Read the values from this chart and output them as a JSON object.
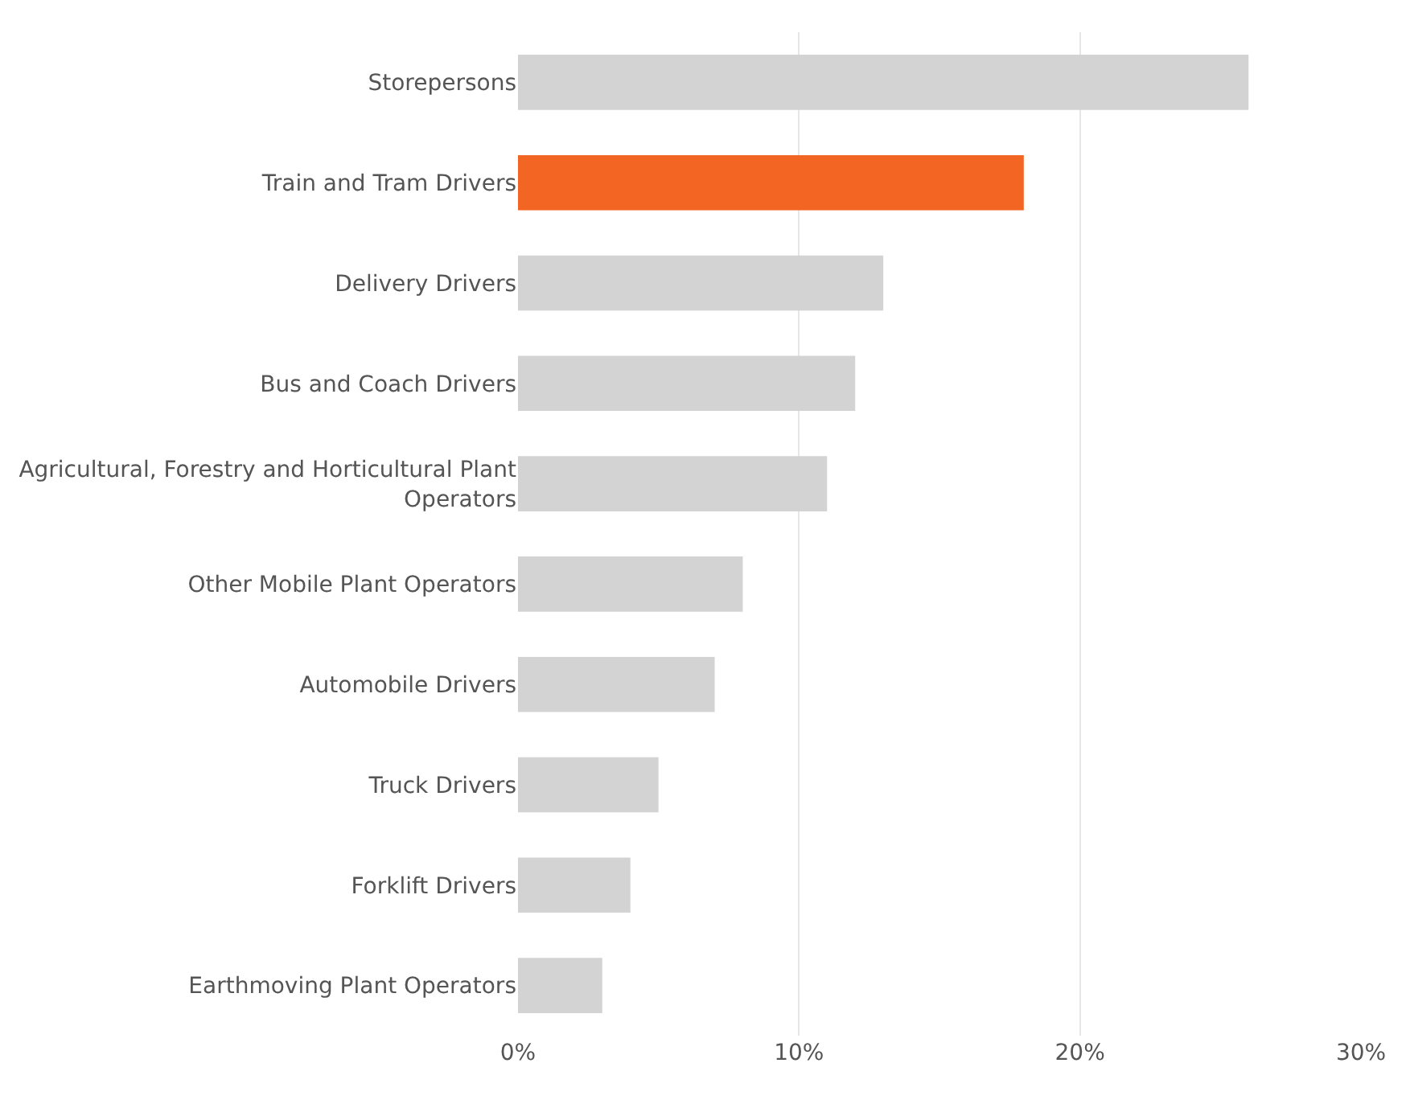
{
  "chart_data": {
    "type": "bar",
    "orientation": "horizontal",
    "categories": [
      "Storepersons",
      "Train and Tram Drivers",
      "Delivery Drivers",
      "Bus and Coach Drivers",
      "Agricultural, Forestry and Horticultural Plant Operators",
      "Other Mobile Plant Operators",
      "Automobile Drivers",
      "Truck Drivers",
      "Forklift Drivers",
      "Earthmoving Plant Operators"
    ],
    "values": [
      26,
      18,
      13,
      12,
      11,
      8,
      7,
      5,
      4,
      3
    ],
    "colors": [
      "#d3d3d3",
      "#f26522",
      "#d3d3d3",
      "#d3d3d3",
      "#d3d3d3",
      "#d3d3d3",
      "#d3d3d3",
      "#d3d3d3",
      "#d3d3d3",
      "#d3d3d3"
    ],
    "xlim": [
      0,
      30
    ],
    "xticks": [
      {
        "value": 0,
        "label": "0%"
      },
      {
        "value": 10,
        "label": "10%"
      },
      {
        "value": 20,
        "label": "20%"
      },
      {
        "value": 30,
        "label": "30%"
      }
    ],
    "grid": "x"
  }
}
